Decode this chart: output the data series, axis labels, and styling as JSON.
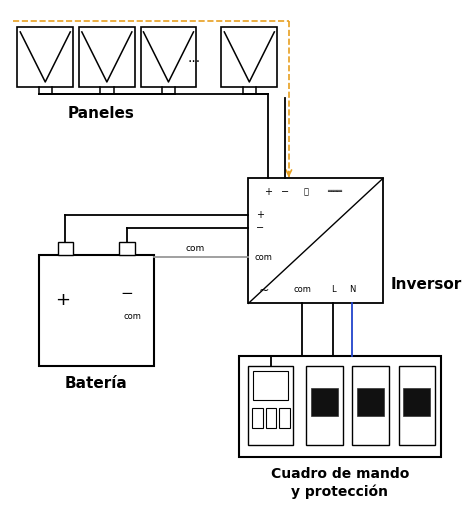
{
  "bg_color": "#ffffff",
  "line_color": "#000000",
  "orange_color": "#E8A020",
  "blue_color": "#2244CC",
  "gray_color": "#999999",
  "panel_label": "Paneles",
  "battery_label": "Batería",
  "inverter_label": "Inversor",
  "cuadro_label1": "Cuadro de mando",
  "cuadro_label2": "y protección",
  "figw": 4.74,
  "figh": 5.23,
  "dpi": 100
}
